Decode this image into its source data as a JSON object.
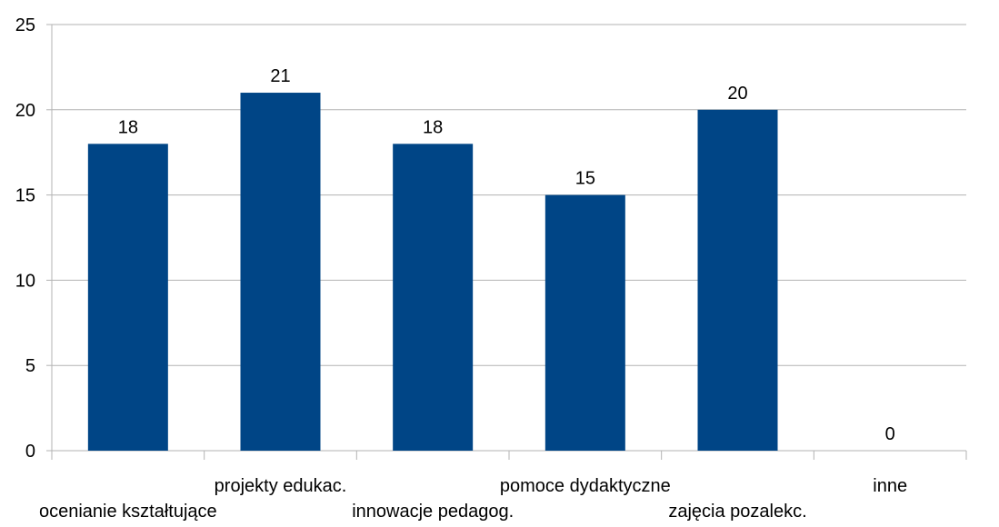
{
  "chart_data": {
    "type": "bar",
    "title": "",
    "xlabel": "",
    "ylabel": "",
    "categories": [
      "ocenianie kształtujące",
      "projekty edukac.",
      "innowacje pedagog.",
      "pomoce dydaktyczne",
      "zajęcia pozalekc.",
      "inne"
    ],
    "values": [
      18,
      21,
      18,
      15,
      20,
      0
    ],
    "ylim": [
      0,
      25
    ],
    "yticks": [
      0,
      5,
      10,
      15,
      20,
      25
    ],
    "grid": true,
    "legend": "none",
    "data_labels": true,
    "bar_color": "#004586",
    "grid_color": "#b3b3b3"
  }
}
